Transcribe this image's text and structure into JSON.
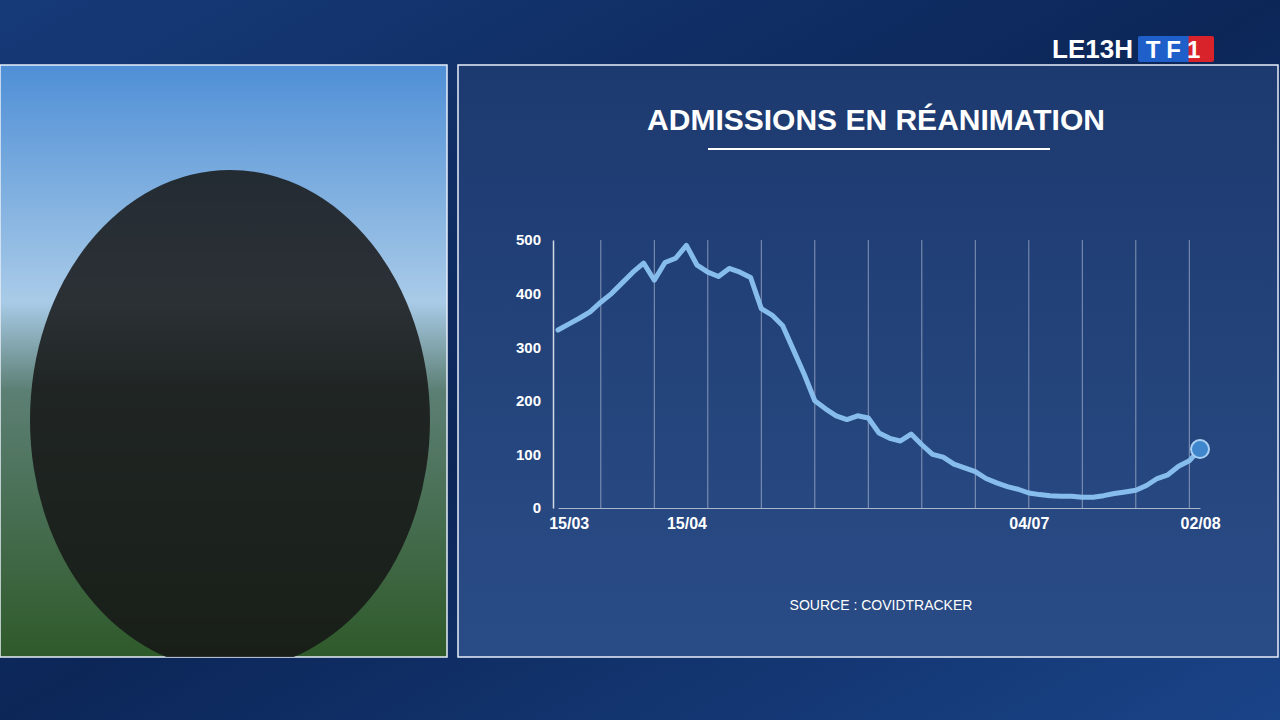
{
  "broadcast": {
    "program": "LE13H",
    "channel": "TF1"
  },
  "chart_data": {
    "type": "line",
    "title": "ADMISSIONS EN RÉANIMATION",
    "source": "SOURCE : COVIDTRACKER",
    "categories": [
      null,
      "15/03",
      null,
      null,
      null,
      null,
      null,
      null,
      null,
      null,
      null,
      null,
      "15/04",
      null,
      null,
      null,
      null,
      null,
      null,
      null,
      null,
      null,
      null,
      null,
      null,
      null,
      null,
      null,
      null,
      null,
      null,
      null,
      null,
      null,
      null,
      null,
      null,
      null,
      null,
      null,
      null,
      null,
      null,
      null,
      "04/07",
      null,
      null,
      null,
      null,
      null,
      null,
      null,
      null,
      null,
      null,
      null,
      null,
      null,
      null,
      null,
      "02/08"
    ],
    "series": [
      {
        "name": "Admissions en réanimation",
        "color": "#86bdec",
        "marker": "none",
        "line_style": "solid",
        "values": [
          332,
          343,
          354,
          366,
          384,
          400,
          420,
          440,
          457,
          425,
          458,
          466,
          490,
          453,
          440,
          432,
          447,
          440,
          430,
          372,
          360,
          340,
          295,
          250,
          200,
          185,
          172,
          165,
          172,
          168,
          140,
          130,
          125,
          138,
          118,
          100,
          95,
          82,
          75,
          68,
          55,
          47,
          40,
          35,
          28,
          25,
          23,
          22,
          22,
          20,
          20,
          23,
          27,
          30,
          33,
          42,
          55,
          62,
          78,
          88,
          110
        ]
      }
    ],
    "ylim": [
      0,
      500
    ],
    "yticks": [
      0,
      100,
      200,
      300,
      400,
      500
    ],
    "grid": true
  }
}
